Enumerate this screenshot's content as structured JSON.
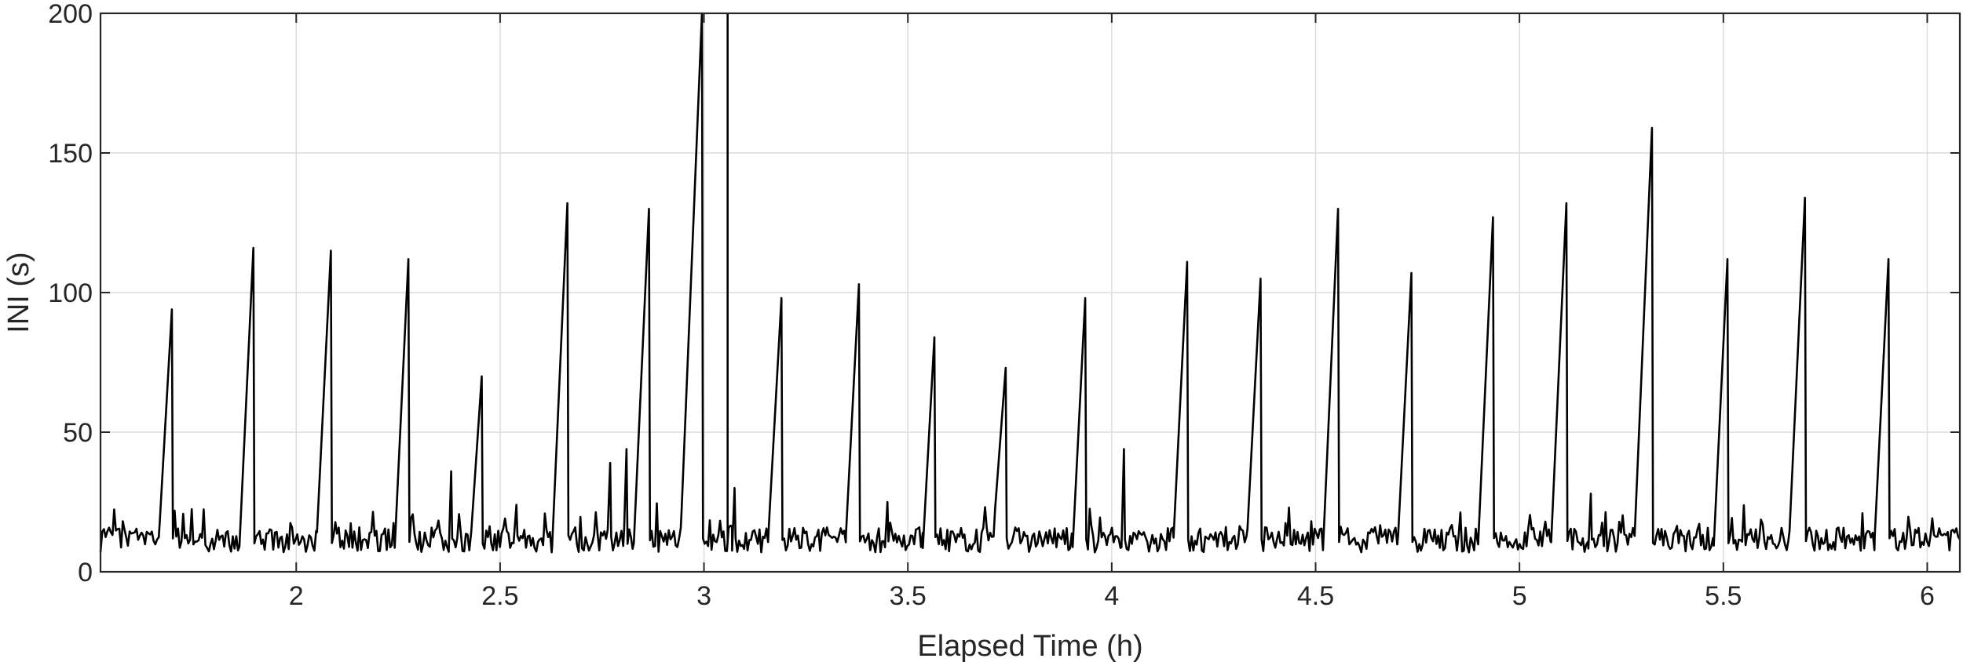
{
  "chart_data": {
    "type": "line",
    "title": "",
    "xlabel": "Elapsed Time (h)",
    "ylabel": "INI (s)",
    "xlim": [
      1.52,
      6.08
    ],
    "ylim": [
      0,
      200
    ],
    "xticks": [
      2,
      2.5,
      3,
      3.5,
      4,
      4.5,
      5,
      5.5,
      6
    ],
    "yticks": [
      0,
      50,
      100,
      150,
      200
    ],
    "xtick_labels": [
      "2",
      "2.5",
      "3",
      "3.5",
      "4",
      "4.5",
      "5",
      "5.5",
      "6"
    ],
    "ytick_labels": [
      "0",
      "50",
      "100",
      "150",
      "200"
    ],
    "grid": true,
    "baseline_level": 11,
    "peaks": [
      {
        "t": 1.695,
        "value": 94
      },
      {
        "t": 1.895,
        "value": 116
      },
      {
        "t": 2.085,
        "value": 115
      },
      {
        "t": 2.275,
        "value": 112
      },
      {
        "t": 2.38,
        "value": 36
      },
      {
        "t": 2.455,
        "value": 70
      },
      {
        "t": 2.54,
        "value": 24
      },
      {
        "t": 2.665,
        "value": 132
      },
      {
        "t": 2.77,
        "value": 39
      },
      {
        "t": 2.81,
        "value": 44
      },
      {
        "t": 2.865,
        "value": 130
      },
      {
        "t": 2.995,
        "value": 200
      },
      {
        "t": 3.075,
        "value": 30
      },
      {
        "t": 3.19,
        "value": 98
      },
      {
        "t": 3.38,
        "value": 103
      },
      {
        "t": 3.45,
        "value": 25
      },
      {
        "t": 3.565,
        "value": 84
      },
      {
        "t": 3.74,
        "value": 73
      },
      {
        "t": 3.935,
        "value": 98
      },
      {
        "t": 4.03,
        "value": 44
      },
      {
        "t": 4.185,
        "value": 111
      },
      {
        "t": 4.365,
        "value": 105
      },
      {
        "t": 4.555,
        "value": 130
      },
      {
        "t": 4.735,
        "value": 107
      },
      {
        "t": 4.935,
        "value": 127
      },
      {
        "t": 5.115,
        "value": 132
      },
      {
        "t": 5.175,
        "value": 28
      },
      {
        "t": 5.325,
        "value": 159
      },
      {
        "t": 5.51,
        "value": 112
      },
      {
        "t": 5.7,
        "value": 134
      },
      {
        "t": 5.905,
        "value": 112
      }
    ]
  }
}
